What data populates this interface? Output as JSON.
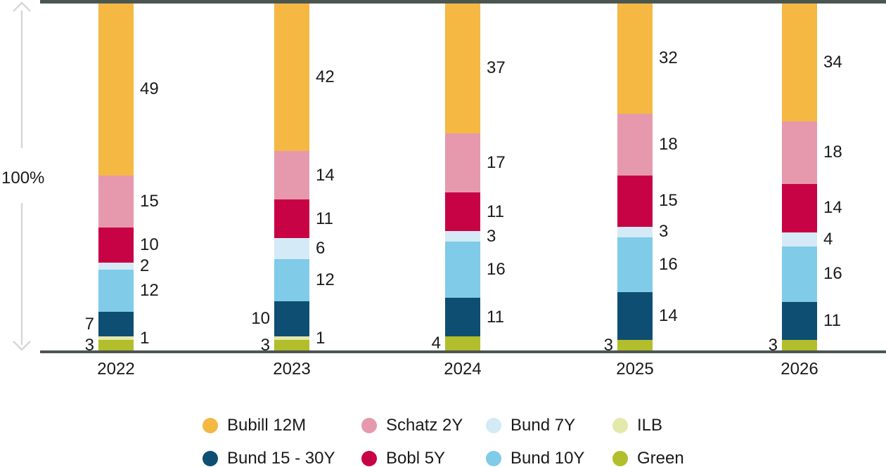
{
  "chart_data": {
    "type": "bar",
    "variant": "stacked-100-percent",
    "title": "",
    "axis_annotation": "100%",
    "grid": false,
    "categories": [
      "2022",
      "2023",
      "2024",
      "2025",
      "2026"
    ],
    "stack_order_bottom_to_top": [
      "Green",
      "ILB",
      "Bund 15 - 30Y",
      "Bund 10Y",
      "Bund 7Y",
      "Bobl 5Y",
      "Schatz 2Y",
      "Bubill 12M"
    ],
    "series": [
      {
        "name": "Green",
        "color": "#B2BE2B",
        "values": [
          3,
          3,
          4,
          3,
          3
        ],
        "label_sides": [
          "left",
          "left",
          "left",
          "left",
          "left"
        ]
      },
      {
        "name": "ILB",
        "color": "#E5E8AB",
        "values": [
          1,
          1,
          0,
          0,
          0
        ],
        "label_sides": [
          "right",
          "right",
          "right",
          "right",
          "right"
        ]
      },
      {
        "name": "Bund 15 - 30Y",
        "color": "#0E4E72",
        "values": [
          7,
          10,
          11,
          14,
          11
        ],
        "label_sides": [
          "left",
          "left",
          "right",
          "right",
          "right"
        ]
      },
      {
        "name": "Bund 10Y",
        "color": "#7FCBE8",
        "values": [
          12,
          12,
          16,
          16,
          16
        ],
        "label_sides": [
          "right",
          "right",
          "right",
          "right",
          "right"
        ]
      },
      {
        "name": "Bund 7Y",
        "color": "#D4EAF6",
        "values": [
          2,
          6,
          3,
          3,
          4
        ],
        "label_sides": [
          "right",
          "right",
          "right",
          "right",
          "right"
        ]
      },
      {
        "name": "Bobl 5Y",
        "color": "#C70245",
        "values": [
          10,
          11,
          11,
          15,
          14
        ],
        "label_sides": [
          "right",
          "right",
          "right",
          "right",
          "right"
        ]
      },
      {
        "name": "Schatz 2Y",
        "color": "#E699AD",
        "values": [
          15,
          14,
          17,
          18,
          18
        ],
        "label_sides": [
          "right",
          "right",
          "right",
          "right",
          "right"
        ]
      },
      {
        "name": "Bubill 12M",
        "color": "#F5B843",
        "values": [
          49,
          42,
          37,
          32,
          34
        ],
        "label_sides": [
          "right",
          "right",
          "right",
          "right",
          "right"
        ]
      }
    ],
    "legend_position": "bottom",
    "legend_rows": [
      [
        {
          "label": "Bubill 12M",
          "color": "#F5B843"
        },
        {
          "label": "Schatz 2Y",
          "color": "#E699AD"
        },
        {
          "label": "Bund 7Y",
          "color": "#D4EAF6"
        },
        {
          "label": "ILB",
          "color": "#E5E8AB"
        }
      ],
      [
        {
          "label": "Bund 15 - 30Y",
          "color": "#0E4E72"
        },
        {
          "label": "Bobl 5Y",
          "color": "#C70245"
        },
        {
          "label": "Bund 10Y",
          "color": "#7FCBE8"
        },
        {
          "label": "Green",
          "color": "#B2BE2B"
        }
      ]
    ]
  },
  "colors": {
    "axis_line": "#4C5650",
    "arrow": "#D7D7D7",
    "text": "#1A1A1A"
  }
}
